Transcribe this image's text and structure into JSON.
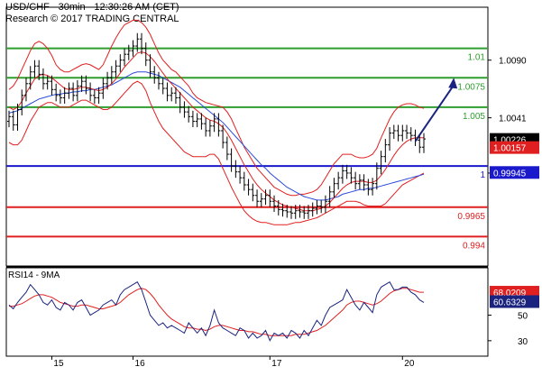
{
  "header": {
    "line1": "USD/CHF - 30min - 12:30:26 AM (CET)",
    "line2": "Research © 2017 TRADING CENTRAL"
  },
  "colors": {
    "green": "#2e9e2e",
    "red": "#e02020",
    "blue": "#1a1acc",
    "navy": "#1a237e",
    "price": "#000000",
    "envelope": "#e02020",
    "ma_slow": "#2b4bd8",
    "ma_fast": "#e02020"
  },
  "chart_data": [
    {
      "type": "candlestick",
      "ylim": [
        0.9915,
        1.0135
      ],
      "y_ticks": [
        "1.0090",
        "1.0041",
        "0.9994"
      ],
      "x_ticks": [
        "15",
        "16",
        "17",
        "20"
      ],
      "levels": [
        {
          "label": "1.01",
          "value": 1.01,
          "color": "#2e9e2e"
        },
        {
          "label": "1.0075",
          "value": 1.0075,
          "color": "#2e9e2e"
        },
        {
          "label": "1.005",
          "value": 1.005,
          "color": "#2e9e2e"
        },
        {
          "label": "1",
          "value": 1.0,
          "color": "#1a1acc"
        },
        {
          "label": "0.9965",
          "value": 0.9965,
          "color": "#e02020"
        },
        {
          "label": "0.994",
          "value": 0.994,
          "color": "#e02020"
        }
      ],
      "price_tags": [
        {
          "label": "1.00226",
          "value": 1.00226,
          "color": "#000000"
        },
        {
          "label": "1.00157",
          "value": 1.00157,
          "color": "#e02020"
        },
        {
          "label": "0.99945",
          "value": 0.99945,
          "color": "#1a1acc"
        }
      ],
      "close": [
        1.0042,
        1.0035,
        1.0048,
        1.006,
        1.007,
        1.008,
        1.0085,
        1.0078,
        1.007,
        1.0072,
        1.0065,
        1.006,
        1.0058,
        1.0062,
        1.0066,
        1.006,
        1.0068,
        1.0072,
        1.0066,
        1.006,
        1.0058,
        1.0062,
        1.007,
        1.0075,
        1.008,
        1.0085,
        1.009,
        1.0095,
        1.0098,
        1.0102,
        1.0108,
        1.01,
        1.009,
        1.008,
        1.0075,
        1.007,
        1.0066,
        1.006,
        1.0062,
        1.0058,
        1.005,
        1.0046,
        1.0042,
        1.0038,
        1.004,
        1.0036,
        1.003,
        1.0034,
        1.004,
        1.003,
        1.002,
        1.001,
        1.0,
        0.9995,
        0.999,
        0.9984,
        0.998,
        0.9975,
        0.997,
        0.9972,
        0.9975,
        0.997,
        0.9966,
        0.9963,
        0.9962,
        0.9961,
        0.996,
        0.9962,
        0.9961,
        0.996,
        0.9962,
        0.9964,
        0.9966,
        0.9965,
        0.997,
        0.9978,
        0.9985,
        0.999,
        0.9996,
        0.9994,
        0.999,
        0.9985,
        0.9988,
        0.9984,
        0.998,
        0.9985,
        0.9998,
        1.0008,
        1.0018,
        1.0028,
        1.003,
        1.0026,
        1.003,
        1.0028,
        1.0026,
        1.0022,
        1.0016,
        1.0023
      ],
      "bollinger_upper": [
        1.0065,
        1.0068,
        1.0074,
        1.0082,
        1.009,
        1.0098,
        1.0104,
        1.0106,
        1.0104,
        1.01,
        1.0094,
        1.0086,
        1.0082,
        1.008,
        1.008,
        1.0082,
        1.0084,
        1.0086,
        1.0087,
        1.0086,
        1.0084,
        1.0082,
        1.0086,
        1.0094,
        1.0102,
        1.0109,
        1.0115,
        1.012,
        1.0122,
        1.0124,
        1.0124,
        1.0122,
        1.0118,
        1.0112,
        1.0104,
        1.0096,
        1.009,
        1.0086,
        1.0082,
        1.008,
        1.0076,
        1.0072,
        1.0068,
        1.0062,
        1.0058,
        1.0056,
        1.0054,
        1.0053,
        1.0052,
        1.0051,
        1.005,
        1.0046,
        1.004,
        1.0032,
        1.0024,
        1.0016,
        1.001,
        1.0004,
        0.9998,
        0.9994,
        0.999,
        0.9986,
        0.9982,
        0.998,
        0.9978,
        0.9976,
        0.9975,
        0.9975,
        0.9976,
        0.9976,
        0.9977,
        0.9978,
        0.998,
        0.9984,
        0.999,
        0.9996,
        1.0002,
        1.0006,
        1.001,
        1.001,
        1.001,
        1.0008,
        1.0007,
        1.0007,
        1.0008,
        1.001,
        1.0015,
        1.0024,
        1.0032,
        1.004,
        1.0046,
        1.005,
        1.0052,
        1.0053,
        1.0053,
        1.0052,
        1.005,
        1.0049
      ],
      "bollinger_lower": [
        1.002,
        1.0018,
        1.0018,
        1.0022,
        1.003,
        1.0038,
        1.0044,
        1.005,
        1.0052,
        1.0054,
        1.0054,
        1.0052,
        1.005,
        1.005,
        1.005,
        1.0052,
        1.0054,
        1.0056,
        1.0056,
        1.0054,
        1.0052,
        1.005,
        1.0048,
        1.0048,
        1.005,
        1.0054,
        1.0058,
        1.0062,
        1.0066,
        1.007,
        1.0072,
        1.007,
        1.0064,
        1.0054,
        1.0046,
        1.0038,
        1.0032,
        1.0028,
        1.0024,
        1.002,
        1.0016,
        1.0012,
        1.001,
        1.0008,
        1.0008,
        1.0008,
        1.0008,
        1.001,
        1.001,
        1.0006,
        0.9998,
        0.999,
        0.9982,
        0.9975,
        0.9968,
        0.9962,
        0.9958,
        0.9955,
        0.9953,
        0.9952,
        0.9952,
        0.9951,
        0.995,
        0.995,
        0.995,
        0.995,
        0.9951,
        0.9952,
        0.9952,
        0.9953,
        0.9954,
        0.9955,
        0.9956,
        0.9958,
        0.996,
        0.9962,
        0.9964,
        0.9966,
        0.9968,
        0.997,
        0.997,
        0.997,
        0.9969,
        0.9967,
        0.9966,
        0.9966,
        0.9966,
        0.9966,
        0.9968,
        0.9972,
        0.9976,
        0.998,
        0.9984,
        0.9986,
        0.9988,
        0.999,
        0.9992,
        0.9994
      ],
      "ma_fast": [
        1.005,
        1.0048,
        1.005,
        1.0055,
        1.0062,
        1.0068,
        1.0074,
        1.0077,
        1.0078,
        1.0077,
        1.0075,
        1.0072,
        1.0069,
        1.0066,
        1.0065,
        1.0065,
        1.0066,
        1.0067,
        1.0067,
        1.0066,
        1.0065,
        1.0064,
        1.0065,
        1.0067,
        1.007,
        1.0074,
        1.0079,
        1.0084,
        1.0088,
        1.0092,
        1.0096,
        1.0097,
        1.0096,
        1.0093,
        1.0089,
        1.0084,
        1.0079,
        1.0074,
        1.007,
        1.0066,
        1.0062,
        1.0058,
        1.0054,
        1.005,
        1.0047,
        1.0044,
        1.0041,
        1.0039,
        1.0038,
        1.0036,
        1.0033,
        1.0028,
        1.0022,
        1.0015,
        1.0008,
        1.0001,
        0.9995,
        0.9989,
        0.9984,
        0.998,
        0.9977,
        0.9974,
        0.9971,
        0.9969,
        0.9967,
        0.9966,
        0.9965,
        0.9964,
        0.9963,
        0.9962,
        0.9962,
        0.9962,
        0.9963,
        0.9964,
        0.9966,
        0.9969,
        0.9973,
        0.9977,
        0.9981,
        0.9984,
        0.9986,
        0.9987,
        0.9987,
        0.9987,
        0.9986,
        0.9986,
        0.9988,
        0.9992,
        0.9997,
        1.0003,
        1.0009,
        1.0014,
        1.0018,
        1.0021,
        1.0023,
        1.0024,
        1.0024,
        1.0024
      ],
      "ma_slow": [
        1.0045,
        1.0046,
        1.0047,
        1.0049,
        1.0051,
        1.0053,
        1.0055,
        1.0057,
        1.0058,
        1.0059,
        1.006,
        1.0061,
        1.0061,
        1.0062,
        1.0062,
        1.0063,
        1.0063,
        1.0064,
        1.0064,
        1.0065,
        1.0065,
        1.0066,
        1.0067,
        1.0068,
        1.0069,
        1.0071,
        1.0073,
        1.0075,
        1.0077,
        1.0079,
        1.008,
        1.008,
        1.008,
        1.0079,
        1.0078,
        1.0077,
        1.0075,
        1.0073,
        1.0071,
        1.0069,
        1.0067,
        1.0064,
        1.0061,
        1.0058,
        1.0055,
        1.0052,
        1.0049,
        1.0046,
        1.0043,
        1.004,
        1.0037,
        1.0033,
        1.0029,
        1.0025,
        1.0021,
        1.0017,
        1.0013,
        1.0009,
        1.0005,
        1.0001,
        0.9998,
        0.9994,
        0.9991,
        0.9988,
        0.9985,
        0.9982,
        0.998,
        0.9978,
        0.9976,
        0.9974,
        0.9973,
        0.9972,
        0.9971,
        0.9971,
        0.9971,
        0.9972,
        0.9973,
        0.9974,
        0.9976,
        0.9977,
        0.9978,
        0.9979,
        0.998,
        0.998,
        0.9981,
        0.9981,
        0.9982,
        0.9983,
        0.9984,
        0.9985,
        0.9986,
        0.9987,
        0.9988,
        0.9989,
        0.999,
        0.9991,
        0.9992,
        0.9993
      ],
      "arrow": {
        "from": [
          1.0021,
          95
        ],
        "to": [
          1.0075,
          104
        ]
      }
    },
    {
      "type": "line",
      "title": "RSI14 - 9MA",
      "ylim": [
        20,
        85
      ],
      "y_ticks": [
        "50",
        "30"
      ],
      "tags": [
        {
          "label": "68.0209",
          "value": 68.0209,
          "color": "#e02020"
        },
        {
          "label": "60.6329",
          "value": 60.6329,
          "color": "#1a237e"
        }
      ],
      "rsi": [
        58,
        55,
        60,
        64,
        68,
        74,
        70,
        66,
        60,
        58,
        62,
        56,
        54,
        60,
        58,
        54,
        60,
        62,
        56,
        50,
        52,
        54,
        58,
        60,
        62,
        58,
        66,
        70,
        72,
        74,
        76,
        70,
        60,
        50,
        46,
        42,
        44,
        40,
        42,
        40,
        38,
        36,
        44,
        40,
        36,
        40,
        34,
        42,
        54,
        44,
        40,
        38,
        36,
        34,
        40,
        38,
        32,
        36,
        32,
        34,
        38,
        30,
        36,
        34,
        36,
        32,
        38,
        36,
        32,
        38,
        34,
        40,
        46,
        42,
        50,
        56,
        58,
        60,
        62,
        70,
        64,
        58,
        54,
        60,
        56,
        52,
        66,
        72,
        74,
        76,
        70,
        70,
        72,
        72,
        68,
        66,
        62,
        60
      ],
      "ma": [
        57,
        57,
        58,
        59,
        61,
        63,
        65,
        66,
        66,
        65,
        64,
        62,
        60,
        59,
        58,
        57,
        57,
        58,
        58,
        57,
        56,
        55,
        55,
        56,
        57,
        58,
        60,
        63,
        66,
        68,
        70,
        71,
        70,
        67,
        63,
        58,
        54,
        50,
        47,
        45,
        43,
        41,
        40,
        40,
        39,
        39,
        38,
        39,
        41,
        42,
        42,
        41,
        40,
        39,
        38,
        38,
        37,
        37,
        36,
        35,
        35,
        34,
        34,
        34,
        34,
        34,
        34,
        35,
        35,
        35,
        36,
        37,
        38,
        40,
        42,
        45,
        48,
        51,
        54,
        58,
        60,
        61,
        61,
        60,
        59,
        58,
        59,
        61,
        64,
        67,
        69,
        70,
        71,
        71,
        70,
        69,
        68,
        68
      ]
    }
  ]
}
